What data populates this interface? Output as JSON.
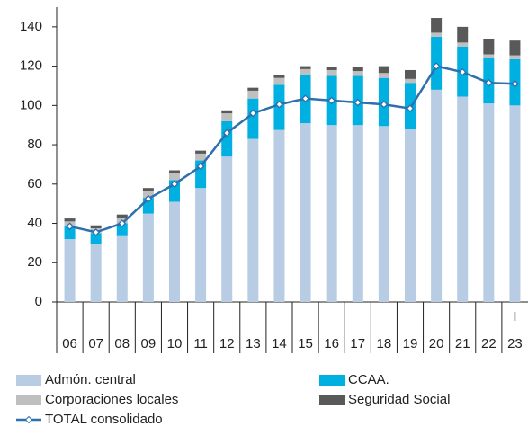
{
  "chart_data": {
    "type": "bar",
    "categories": [
      "06",
      "07",
      "08",
      "09",
      "10",
      "11",
      "12",
      "13",
      "14",
      "15",
      "16",
      "17",
      "18",
      "19",
      "20",
      "21",
      "22",
      "23"
    ],
    "category_note": "I",
    "series": [
      {
        "name": "Admón. central",
        "color": "#b8cce4",
        "values": [
          32,
          29.5,
          33.5,
          45,
          51,
          58,
          74,
          83,
          87.5,
          91,
          90,
          90,
          89.5,
          88,
          108,
          104.5,
          101,
          100
        ]
      },
      {
        "name": "CCAA.",
        "color": "#00b0e0",
        "values": [
          7,
          5.5,
          6.5,
          8,
          11,
          14,
          18,
          20.5,
          23,
          24.5,
          25,
          25,
          24.5,
          23.5,
          27,
          25.5,
          23,
          23.5
        ]
      },
      {
        "name": "Corporaciones locales",
        "color": "#bfbfbf",
        "values": [
          2,
          2.5,
          3,
          3.5,
          3.5,
          3.5,
          4,
          4,
          3.5,
          3,
          3,
          2.5,
          2.5,
          2,
          2,
          2,
          2,
          2
        ]
      },
      {
        "name": "Seguridad Social",
        "color": "#595959",
        "values": [
          1.5,
          1.5,
          1.5,
          1.5,
          1.5,
          1.5,
          1.5,
          1.5,
          1.5,
          1.5,
          1.5,
          2,
          3.5,
          4.5,
          7.5,
          8,
          8,
          7.5
        ]
      },
      {
        "name": "TOTAL consolidado",
        "type": "line",
        "color": "#2e6fad",
        "values": [
          38.5,
          35.5,
          40,
          52.5,
          60,
          69,
          86,
          96,
          100.5,
          103.5,
          102.5,
          101.5,
          100.5,
          98.5,
          120,
          117,
          111.5,
          111
        ]
      }
    ],
    "ylim": [
      0,
      150
    ],
    "yticks": [
      0,
      20,
      40,
      60,
      80,
      100,
      120,
      140
    ]
  }
}
